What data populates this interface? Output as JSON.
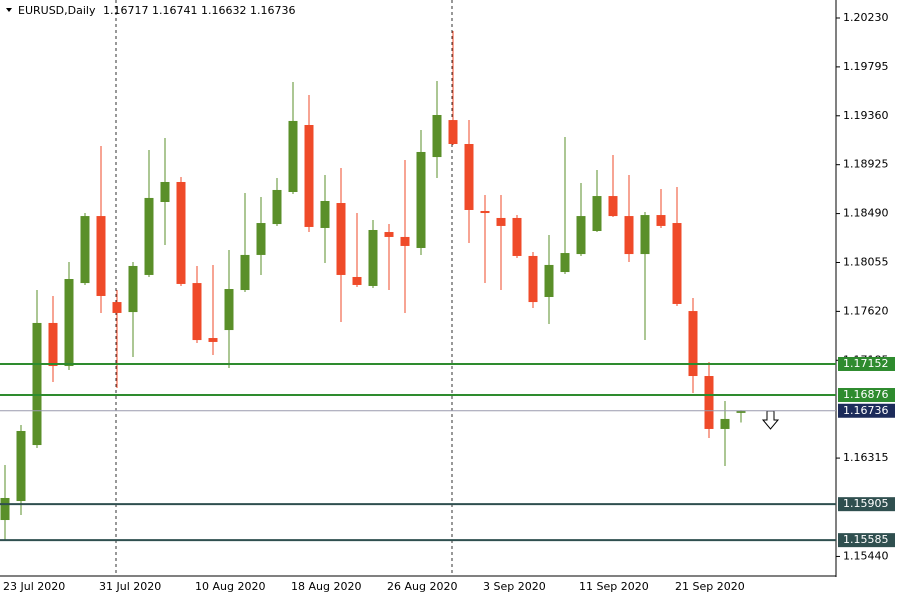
{
  "chart_data": {
    "type": "candlestick",
    "symbol": "EURUSD,Daily",
    "ohlc": [
      1.16717,
      1.16741,
      1.16632,
      1.16736
    ],
    "categories": [
      "23 Jul 2020",
      null,
      null,
      null,
      null,
      null,
      "31 Jul 2020",
      null,
      null,
      null,
      null,
      null,
      "10 Aug 2020",
      null,
      null,
      null,
      null,
      null,
      "18 Aug 2020",
      null,
      null,
      null,
      null,
      null,
      "26 Aug 2020",
      null,
      null,
      null,
      null,
      null,
      "3 Sep 2020",
      null,
      null,
      null,
      null,
      null,
      "11 Sep 2020",
      null,
      null,
      null,
      null,
      null,
      "21 Sep 2020",
      null,
      null,
      null,
      null
    ],
    "open": [
      1.15764,
      1.15933,
      1.16431,
      1.17517,
      1.17134,
      1.17872,
      1.18468,
      1.17703,
      1.17614,
      1.17944,
      1.18593,
      1.18771,
      1.17872,
      1.17383,
      1.17454,
      1.1781,
      1.18122,
      1.18397,
      1.18682,
      1.19278,
      1.18362,
      1.18584,
      1.17926,
      1.17846,
      1.18326,
      1.18282,
      1.18184,
      1.18993,
      1.19322,
      1.19109,
      1.18513,
      1.18451,
      1.18451,
      1.18113,
      1.17748,
      1.1797,
      1.1813,
      1.18335,
      1.18646,
      1.18468,
      1.1813,
      1.18477,
      1.18406,
      1.17623,
      1.17045,
      1.16574,
      1.16717
    ],
    "high": [
      1.16253,
      1.16609,
      1.1781,
      1.17757,
      1.18059,
      1.18495,
      1.19091,
      1.1781,
      1.18059,
      1.19056,
      1.19162,
      1.18815,
      1.18024,
      1.18033,
      1.18166,
      1.18673,
      1.18637,
      1.18807,
      1.19661,
      1.19545,
      1.18833,
      1.18895,
      1.18495,
      1.18433,
      1.18397,
      1.18967,
      1.19234,
      1.19669,
      1.20114,
      1.19322,
      1.18655,
      1.18655,
      1.18477,
      1.18148,
      1.18299,
      1.19171,
      1.18762,
      1.18878,
      1.19011,
      1.18833,
      1.18504,
      1.18709,
      1.18726,
      1.17739,
      1.1717,
      1.16823,
      1.16741
    ],
    "low": [
      1.15586,
      1.15809,
      1.16405,
      1.16992,
      1.17098,
      1.17855,
      1.17606,
      1.16938,
      1.17214,
      1.17926,
      1.1821,
      1.17846,
      1.17339,
      1.17232,
      1.17116,
      1.17792,
      1.17944,
      1.1838,
      1.18664,
      1.18326,
      1.1805,
      1.17525,
      1.17837,
      1.17828,
      1.1781,
      1.17606,
      1.18122,
      1.18807,
      1.191,
      1.18228,
      1.17872,
      1.1781,
      1.18095,
      1.1765,
      1.17508,
      1.17952,
      1.18113,
      1.18326,
      1.1846,
      1.18059,
      1.17365,
      1.18362,
      1.17668,
      1.16894,
      1.16494,
      1.16244,
      1.16632
    ],
    "close": [
      1.1596,
      1.16556,
      1.17517,
      1.17134,
      1.17908,
      1.18468,
      1.17757,
      1.17606,
      1.18024,
      1.18629,
      1.18771,
      1.17864,
      1.17365,
      1.17348,
      1.17819,
      1.18122,
      1.18406,
      1.187,
      1.19314,
      1.18371,
      1.18602,
      1.17944,
      1.17855,
      1.18344,
      1.18282,
      1.18202,
      1.19038,
      1.19367,
      1.19109,
      1.18522,
      1.18495,
      1.1838,
      1.18113,
      1.17703,
      1.18033,
      1.18139,
      1.18468,
      1.18646,
      1.18468,
      1.1813,
      1.18477,
      1.1838,
      1.17686,
      1.17045,
      1.16574,
      1.16663,
      1.16736
    ],
    "up_color": "#5a8f29",
    "down_color": "#ef4a29",
    "ylim": [
      1.15266,
      1.2039
    ],
    "yticks": [
      {
        "value": 1.2023,
        "label": "1.20230"
      },
      1.19795,
      {
        "value": 1.1936,
        "label": "1.19360"
      },
      1.18925,
      {
        "value": 1.1849,
        "label": "1.18490"
      },
      1.18055,
      {
        "value": 1.1762,
        "label": "1.17620"
      },
      1.17185,
      1.16315,
      {
        "value": 1.1544,
        "label": "1.15440"
      }
    ],
    "levels": [
      {
        "value": 1.17152,
        "color": "#2e8b2e"
      },
      {
        "value": 1.16876,
        "color": "#2e8b2e"
      },
      {
        "value": 1.15905,
        "color": "#2f4f4f"
      },
      {
        "value": 1.15585,
        "color": "#2f4f4f"
      }
    ],
    "price_line_color": "#1c2b5a"
  }
}
